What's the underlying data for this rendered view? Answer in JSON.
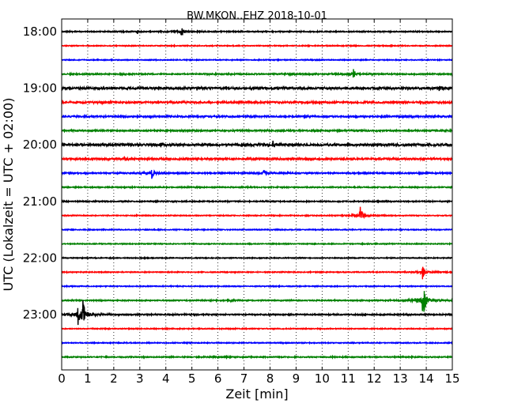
{
  "chart_data": {
    "type": "line",
    "title": "BW.MKON..EHZ 2018-10-01",
    "xlabel": "Zeit  [min]",
    "ylabel": "UTC (Lokalzeit = UTC + 02:00)",
    "xlim": [
      0,
      15
    ],
    "x_ticks": [
      "0",
      "1",
      "2",
      "3",
      "4",
      "5",
      "6",
      "7",
      "8",
      "9",
      "10",
      "11",
      "12",
      "13",
      "14",
      "15"
    ],
    "y_ticks": [
      "18:00",
      "19:00",
      "20:00",
      "21:00",
      "22:00",
      "23:00"
    ],
    "x_grid": true,
    "trace_interval_minutes": 15,
    "first_trace": "18:00",
    "trace_colors": [
      "#000000",
      "#ff0000",
      "#0000ff",
      "#008000"
    ],
    "traces": [
      {
        "start": "18:00",
        "noise": 0.6,
        "events": [
          {
            "t": 2.9,
            "amp": 2.0
          },
          {
            "t": 4.6,
            "amp": 7.0
          }
        ]
      },
      {
        "start": "18:15",
        "noise": 0.5,
        "events": []
      },
      {
        "start": "18:30",
        "noise": 0.5,
        "events": []
      },
      {
        "start": "18:45",
        "noise": 0.7,
        "events": [
          {
            "t": 11.2,
            "amp": 6.0
          },
          {
            "t": 8.8,
            "amp": 2.0
          }
        ]
      },
      {
        "start": "19:00",
        "noise": 1.2,
        "events": [
          {
            "t": 14.5,
            "amp": 4.0
          },
          {
            "t": 3.0,
            "amp": 2.0
          }
        ]
      },
      {
        "start": "19:15",
        "noise": 1.0,
        "events": [
          {
            "t": 1.5,
            "amp": 2.0
          }
        ]
      },
      {
        "start": "19:30",
        "noise": 0.9,
        "events": []
      },
      {
        "start": "19:45",
        "noise": 0.8,
        "events": []
      },
      {
        "start": "20:00",
        "noise": 1.3,
        "events": [
          {
            "t": 8.1,
            "amp": 5.0
          },
          {
            "t": 3.8,
            "amp": 2.5
          }
        ]
      },
      {
        "start": "20:15",
        "noise": 1.0,
        "events": [
          {
            "t": 2.4,
            "amp": 2.0
          }
        ]
      },
      {
        "start": "20:30",
        "noise": 0.7,
        "events": [
          {
            "t": 3.45,
            "amp": 8.0
          },
          {
            "t": 7.75,
            "amp": 4.0
          }
        ]
      },
      {
        "start": "20:45",
        "noise": 0.6,
        "events": []
      },
      {
        "start": "21:00",
        "noise": 0.6,
        "events": []
      },
      {
        "start": "21:15",
        "noise": 0.5,
        "events": [
          {
            "t": 11.45,
            "amp": 13.0
          }
        ]
      },
      {
        "start": "21:30",
        "noise": 0.5,
        "events": []
      },
      {
        "start": "21:45",
        "noise": 0.5,
        "events": []
      },
      {
        "start": "22:00",
        "noise": 0.5,
        "events": []
      },
      {
        "start": "22:15",
        "noise": 0.5,
        "events": [
          {
            "t": 13.85,
            "amp": 10.0
          }
        ]
      },
      {
        "start": "22:30",
        "noise": 0.5,
        "events": []
      },
      {
        "start": "22:45",
        "noise": 0.6,
        "events": [
          {
            "t": 13.85,
            "amp": 36.0
          },
          {
            "t": 6.5,
            "amp": 1.5
          }
        ]
      },
      {
        "start": "23:00",
        "noise": 0.7,
        "events": [
          {
            "t": 0.62,
            "amp": 15.0
          },
          {
            "t": 0.8,
            "amp": 20.0
          }
        ]
      },
      {
        "start": "23:15",
        "noise": 0.5,
        "events": []
      },
      {
        "start": "23:30",
        "noise": 0.5,
        "events": []
      },
      {
        "start": "23:45",
        "noise": 0.6,
        "events": [
          {
            "t": 6.0,
            "amp": 1.5
          }
        ]
      }
    ]
  }
}
